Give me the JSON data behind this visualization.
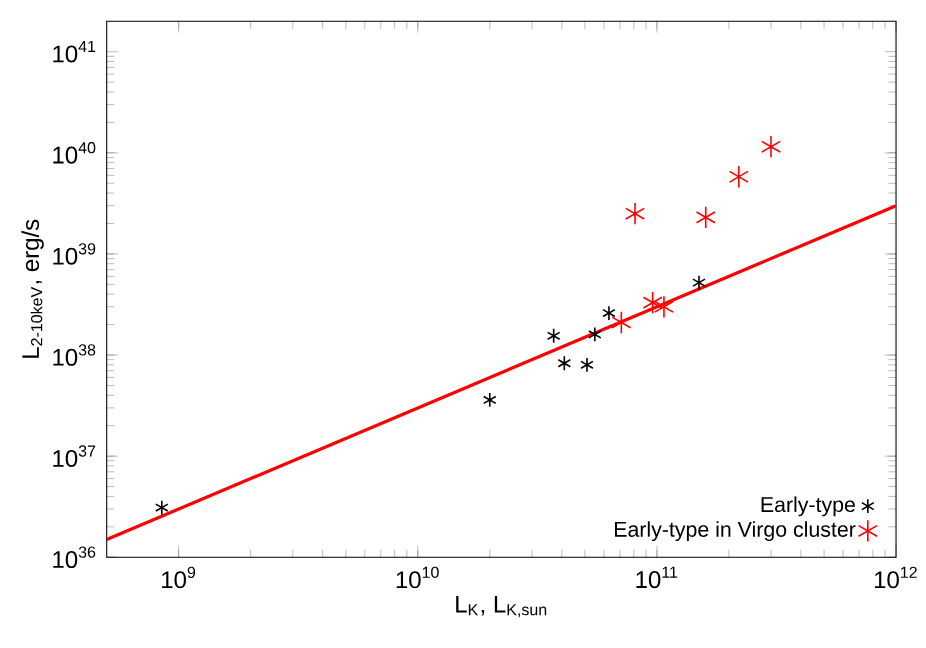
{
  "chart_data": {
    "type": "scatter",
    "xlabel": "L$_{K}$, L$_{K,sun}$",
    "ylabel": "L$_{2-10keV}$, erg/s",
    "log": "xy",
    "xlim": [
      500000000.0,
      1000000000000.0
    ],
    "ylim": [
      1e+36,
      2e+41
    ],
    "xticks": [
      {
        "value": 1000000000.0,
        "label": "10$^{9}$"
      },
      {
        "value": 10000000000.0,
        "label": "10$^{10}$"
      },
      {
        "value": 100000000000.0,
        "label": "10$^{11}$"
      },
      {
        "value": 1000000000000.0,
        "label": "10$^{12}$"
      }
    ],
    "yticks": [
      {
        "value": 1e+36,
        "label": "10$^{36}$"
      },
      {
        "value": 1e+37,
        "label": "10$^{37}$"
      },
      {
        "value": 1e+38,
        "label": "10$^{38}$"
      },
      {
        "value": 1e+39,
        "label": "10$^{39}$"
      },
      {
        "value": 1e+40,
        "label": "10$^{40}$"
      },
      {
        "value": 1e+41,
        "label": "10$^{41}$"
      }
    ],
    "grid": false,
    "legend": "bottom right",
    "marker": "cross",
    "series": [
      {
        "name": "Early-type",
        "color": "#000000",
        "x": [
          850000000.0,
          20000000000.0,
          37000000000.0,
          41000000000.0,
          51000000000.0,
          55000000000.0,
          63000000000.0,
          150000000000.0
        ],
        "values": [
          3.1e+36,
          3.6e+37,
          1.55e+38,
          8.3e+37,
          8e+37,
          1.6e+38,
          2.6e+38,
          5.2e+38
        ]
      },
      {
        "name": "Early-type in Virgo cluster",
        "color": "#ff0000",
        "x": [
          71000000000.0,
          81000000000.0,
          96000000000.0,
          107000000000.0,
          160000000000.0,
          220000000000.0,
          300000000000.0
        ],
        "values": [
          2.1e+38,
          2.5e+39,
          3.3e+38,
          3e+38,
          2.3e+39,
          5.8e+39,
          1.15e+40
        ]
      },
      {
        "type": "line",
        "color": "#ff0000",
        "marker": "none",
        "line_style": "solid",
        "x": [
          500000000.0,
          1000000000000.0
        ],
        "values": [
          1.5e+36,
          3e+39
        ]
      }
    ]
  }
}
